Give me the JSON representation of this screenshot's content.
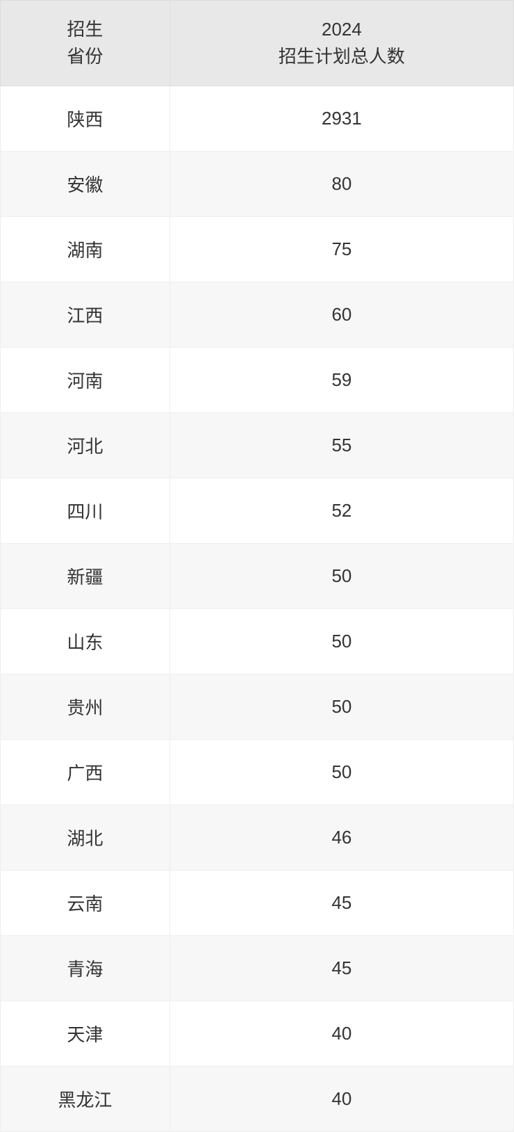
{
  "table": {
    "type": "table",
    "columns": [
      {
        "header_line1": "招生",
        "header_line2": "省份",
        "width": "33%",
        "align": "center"
      },
      {
        "header_line1": "2024",
        "header_line2": "招生计划总人数",
        "width": "67%",
        "align": "center"
      }
    ],
    "rows": [
      {
        "province": "陕西",
        "count": "2931"
      },
      {
        "province": "安徽",
        "count": "80"
      },
      {
        "province": "湖南",
        "count": "75"
      },
      {
        "province": "江西",
        "count": "60"
      },
      {
        "province": "河南",
        "count": "59"
      },
      {
        "province": "河北",
        "count": "55"
      },
      {
        "province": "四川",
        "count": "52"
      },
      {
        "province": "新疆",
        "count": "50"
      },
      {
        "province": "山东",
        "count": "50"
      },
      {
        "province": "贵州",
        "count": "50"
      },
      {
        "province": "广西",
        "count": "50"
      },
      {
        "province": "湖北",
        "count": "46"
      },
      {
        "province": "云南",
        "count": "45"
      },
      {
        "province": "青海",
        "count": "45"
      },
      {
        "province": "天津",
        "count": "40"
      },
      {
        "province": "黑龙江",
        "count": "40"
      }
    ],
    "header_bg_color": "#e8e8e8",
    "row_odd_bg_color": "#ffffff",
    "row_even_bg_color": "#f7f7f7",
    "border_color": "#eeeeee",
    "header_border_color": "#dddddd",
    "text_color": "#333333",
    "font_size": 26,
    "cell_padding_vertical": 28,
    "header_padding_vertical": 22
  }
}
